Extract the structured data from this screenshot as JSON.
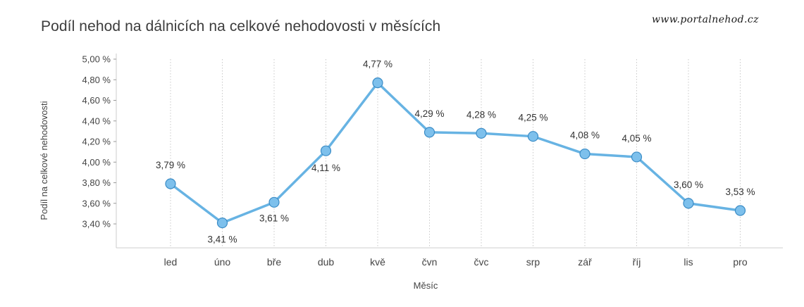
{
  "header": {
    "title": "Podíl nehod na dálnicích na celkové nehodovosti v měsících",
    "source": "www.portalnehod.cz"
  },
  "chart_data": {
    "type": "line",
    "title": "Podíl nehod na dálnicích na celkové nehodovosti v měsících",
    "xlabel": "Měsíc",
    "ylabel": "Podíl na celkové nehodovosti",
    "categories": [
      "led",
      "úno",
      "bře",
      "dub",
      "kvě",
      "čvn",
      "čvc",
      "srp",
      "zář",
      "říj",
      "lis",
      "pro"
    ],
    "series": [
      {
        "values": [
          3.79,
          3.41,
          3.61,
          4.11,
          4.77,
          4.29,
          4.28,
          4.25,
          4.08,
          4.05,
          3.6,
          3.53
        ]
      }
    ],
    "data_labels": [
      "3,79 %",
      "3,41 %",
      "3,61 %",
      "4,11 %",
      "4,77 %",
      "4,29 %",
      "4,28 %",
      "4,25 %",
      "4,08 %",
      "4,05 %",
      "3,60 %",
      "3,53 %"
    ],
    "yticks": [
      3.4,
      3.6,
      3.8,
      4.0,
      4.2,
      4.4,
      4.6,
      4.8,
      5.0
    ],
    "ytick_labels": [
      "3,40 %",
      "3,60 %",
      "3,80 %",
      "4,00 %",
      "4,20 %",
      "4,40 %",
      "4,60 %",
      "4,80 %",
      "5,00 %"
    ],
    "ylim": [
      3.4,
      5.0
    ],
    "grid": "vertical dotted",
    "colors": {
      "line": "#67b3e3",
      "marker": "#7dc0ec",
      "marker_stroke": "#3b8cc6",
      "grid": "#c8c8c8",
      "axis": "#cccccc"
    }
  }
}
